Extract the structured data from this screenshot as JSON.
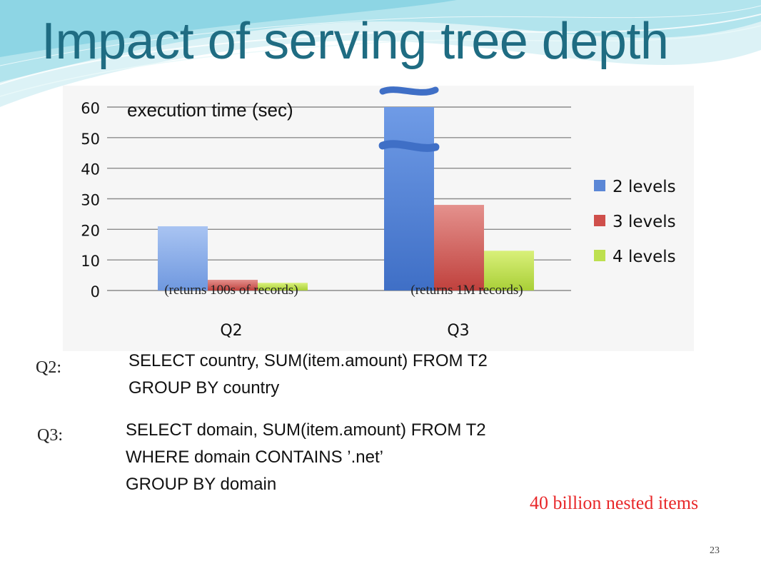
{
  "slide": {
    "title": "Impact of serving tree depth",
    "page_number": "23",
    "note": "40 billion nested items",
    "queries": [
      {
        "label": "Q2:",
        "lines": [
          "SELECT country, SUM(item.amount) FROM T2",
          "GROUP BY country"
        ]
      },
      {
        "label": "Q3:",
        "lines": [
          "SELECT domain, SUM(item.amount) FROM T2",
          "WHERE domain CONTAINS ’.net’",
          "GROUP BY domain"
        ]
      }
    ]
  },
  "colors": {
    "title": "#1f6c82",
    "series": [
      "#5b87d6",
      "#cf4f4b",
      "#bde04f"
    ],
    "note": "#e8282a"
  },
  "chart_data": {
    "type": "bar",
    "title": "execution time (sec)",
    "categories": [
      "Q2",
      "Q3"
    ],
    "category_notes": [
      "(returns 100s of records)",
      "(returns 1M records)"
    ],
    "series": [
      {
        "name": "2 levels",
        "values": [
          21,
          60
        ]
      },
      {
        "name": "3 levels",
        "values": [
          3.5,
          28
        ]
      },
      {
        "name": "4 levels",
        "values": [
          2.5,
          13
        ]
      }
    ],
    "ylim": [
      0,
      60
    ],
    "yticks": [
      "0",
      "10",
      "20",
      "30",
      "40",
      "50",
      "60"
    ],
    "y_axis_break": "top of Q3 2 levels bar (value exceeds axis)",
    "grid": true,
    "legend_position": "right"
  }
}
